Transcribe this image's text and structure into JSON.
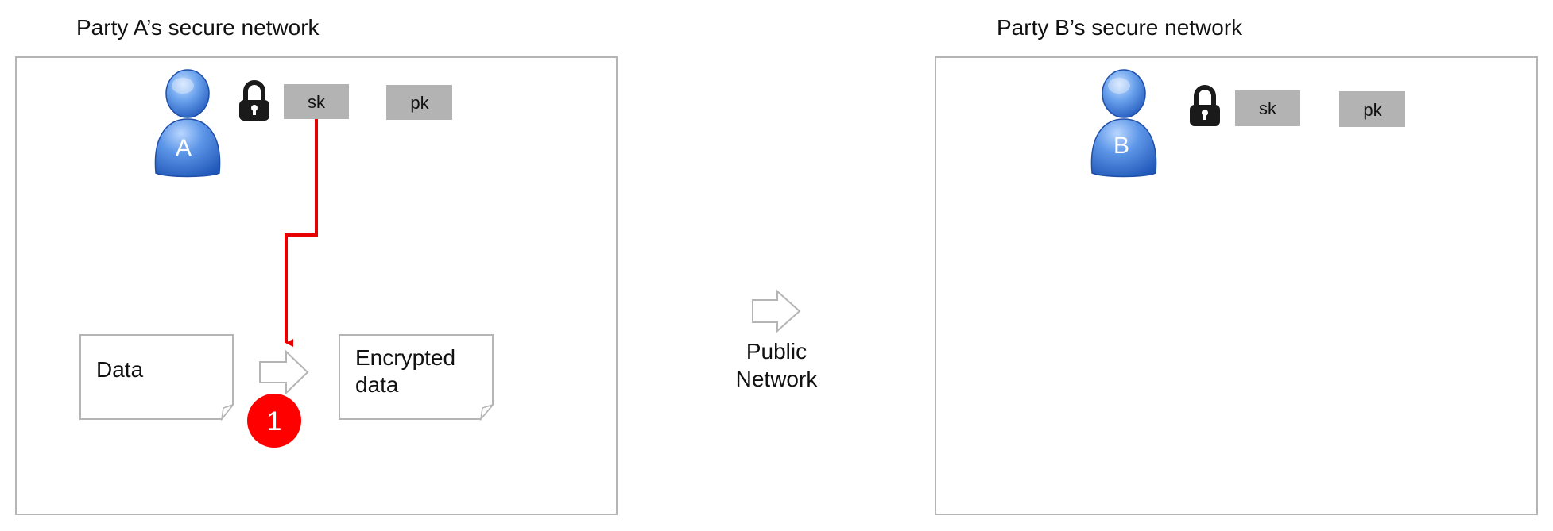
{
  "party_a": {
    "title": "Party A’s secure network",
    "avatar_letter": "A",
    "sk_label": "sk",
    "pk_label": "pk",
    "data_doc_label": "Data",
    "encrypted_doc_line1": "Encrypted",
    "encrypted_doc_line2": "data",
    "step_badge": "1"
  },
  "public_network": {
    "line1": "Public",
    "line2": "Network"
  },
  "party_b": {
    "title": "Party B’s secure network",
    "avatar_letter": "B",
    "sk_label": "sk",
    "pk_label": "pk"
  },
  "colors": {
    "panel_border": "#b5b5b5",
    "key_box": "#b3b3b3",
    "key_flow_arrow": "#e60000",
    "step_badge": "#ff0000",
    "avatar_blue": "#3a7ad8",
    "lock": "#1a1a1a"
  },
  "icons": [
    "user-icon",
    "padlock-icon",
    "hollow-arrow-icon",
    "document-icon"
  ]
}
